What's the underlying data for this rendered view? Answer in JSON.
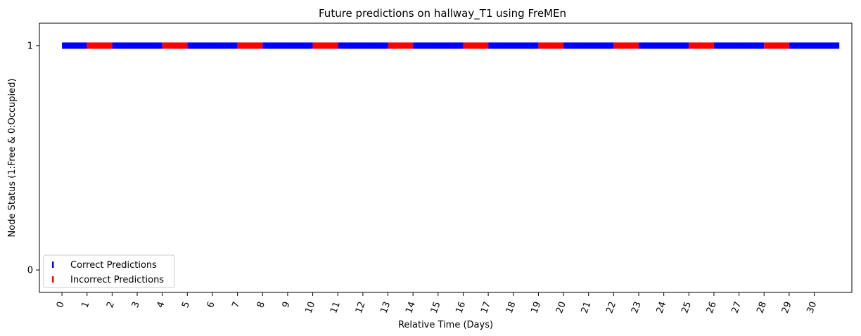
{
  "chart_data": {
    "type": "scatter",
    "title": "Future predictions on hallway_T1 using FreMEn",
    "xlabel": "Relative Time (Days)",
    "ylabel": "Node Status (1:Free & 0:Occupied)",
    "xlim": [
      -0.9,
      31.5
    ],
    "ylim": [
      -0.1,
      1.1
    ],
    "x_ticks": [
      0,
      1,
      2,
      3,
      4,
      5,
      6,
      7,
      8,
      9,
      10,
      11,
      12,
      13,
      14,
      15,
      16,
      17,
      18,
      19,
      20,
      21,
      22,
      23,
      24,
      25,
      26,
      27,
      28,
      29,
      30
    ],
    "y_ticks": [
      0,
      1
    ],
    "x_tick_rotation_deg": 70,
    "grid": false,
    "legend_position": "lower-left",
    "series": [
      {
        "name": "Correct Predictions",
        "color": "#0000ff",
        "marker": "vertical-line",
        "y_value": 1,
        "x_intervals": [
          [
            0,
            1
          ],
          [
            2,
            4
          ],
          [
            5,
            7
          ],
          [
            8,
            10
          ],
          [
            11,
            13
          ],
          [
            14,
            16
          ],
          [
            17,
            19
          ],
          [
            20,
            22
          ],
          [
            23,
            25
          ],
          [
            26,
            28
          ],
          [
            29,
            31
          ]
        ]
      },
      {
        "name": "Incorrect Predictions",
        "color": "#ff0000",
        "marker": "vertical-line",
        "y_value": 1,
        "x_intervals": [
          [
            1,
            2
          ],
          [
            4,
            5
          ],
          [
            7,
            8
          ],
          [
            10,
            11
          ],
          [
            13,
            14
          ],
          [
            16,
            17
          ],
          [
            19,
            20
          ],
          [
            22,
            23
          ],
          [
            25,
            26
          ],
          [
            28,
            29
          ]
        ]
      }
    ]
  }
}
